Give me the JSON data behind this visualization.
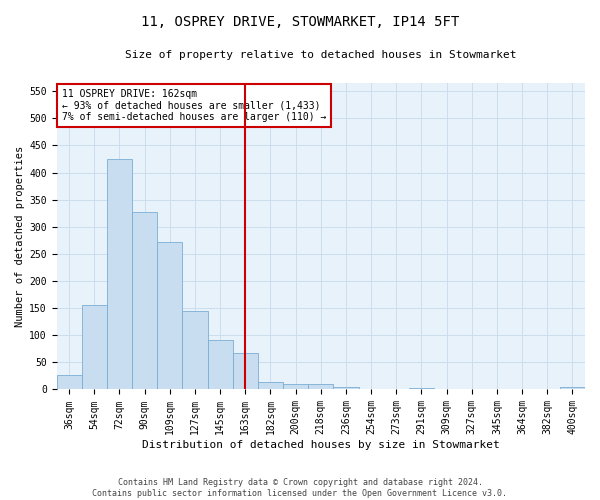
{
  "title_line1": "11, OSPREY DRIVE, STOWMARKET, IP14 5FT",
  "title_line2": "Size of property relative to detached houses in Stowmarket",
  "xlabel": "Distribution of detached houses by size in Stowmarket",
  "ylabel": "Number of detached properties",
  "footnote": "Contains HM Land Registry data © Crown copyright and database right 2024.\nContains public sector information licensed under the Open Government Licence v3.0.",
  "bin_labels": [
    "36sqm",
    "54sqm",
    "72sqm",
    "90sqm",
    "109sqm",
    "127sqm",
    "145sqm",
    "163sqm",
    "182sqm",
    "200sqm",
    "218sqm",
    "236sqm",
    "254sqm",
    "273sqm",
    "291sqm",
    "309sqm",
    "327sqm",
    "345sqm",
    "364sqm",
    "382sqm",
    "400sqm"
  ],
  "bar_heights": [
    27,
    155,
    425,
    327,
    272,
    145,
    92,
    68,
    13,
    10,
    10,
    5,
    0,
    0,
    3,
    0,
    0,
    0,
    0,
    0,
    4
  ],
  "bar_color": "#c9ddf0",
  "bar_edge_color": "#7aadd4",
  "grid_color": "#ccdded",
  "background_color": "#e8f2fb",
  "vline_color": "#cc0000",
  "annotation_text": "11 OSPREY DRIVE: 162sqm\n← 93% of detached houses are smaller (1,433)\n7% of semi-detached houses are larger (110) →",
  "annotation_box_color": "#ffffff",
  "annotation_box_edge": "#cc0000",
  "ylim": [
    0,
    565
  ],
  "yticks": [
    0,
    50,
    100,
    150,
    200,
    250,
    300,
    350,
    400,
    450,
    500,
    550
  ],
  "title1_fontsize": 10,
  "title2_fontsize": 8,
  "xlabel_fontsize": 8,
  "ylabel_fontsize": 7.5,
  "tick_fontsize": 7,
  "annot_fontsize": 7,
  "footnote_fontsize": 6
}
